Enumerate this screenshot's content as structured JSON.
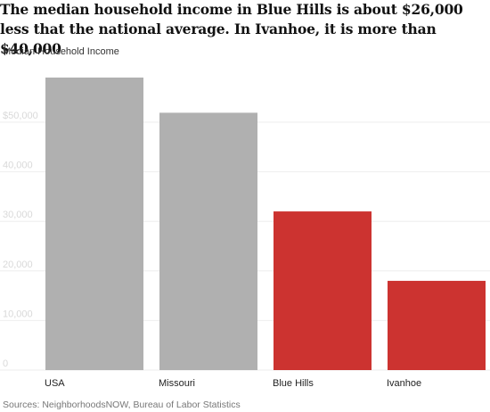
{
  "header": {
    "title": "The median household income in Blue Hills is about $26,000 less that the national average. In Ivanhoe, it is more than $40,000",
    "subtitle": "Median Household Income"
  },
  "footer": {
    "source": "Sources: NeighborhoodsNOW, Bureau of Labor Statistics"
  },
  "colors": {
    "reference": "#b0b0b0",
    "highlight": "#cc3330",
    "grid": "#eeeeee",
    "tick_text": "#d9d9d9"
  },
  "chart_data": {
    "type": "bar",
    "categories": [
      "USA",
      "Missouri",
      "Blue Hills",
      "Ivanhoe"
    ],
    "values": [
      59000,
      51900,
      32000,
      18000
    ],
    "highlighted": [
      "Blue Hills",
      "Ivanhoe"
    ],
    "title": "The median household income in Blue Hills is about $26,000 less that the national average. In Ivanhoe, it is more than $40,000",
    "ylabel": "Median Household Income",
    "xlabel": "",
    "ylim": [
      0,
      60000
    ],
    "yticks": [
      0,
      10000,
      20000,
      30000,
      40000,
      50000
    ],
    "ytick_labels": [
      "0",
      "10,000",
      "20,000",
      "30,000",
      "40,000",
      "$50,000"
    ],
    "grid": true,
    "legend": "none"
  }
}
